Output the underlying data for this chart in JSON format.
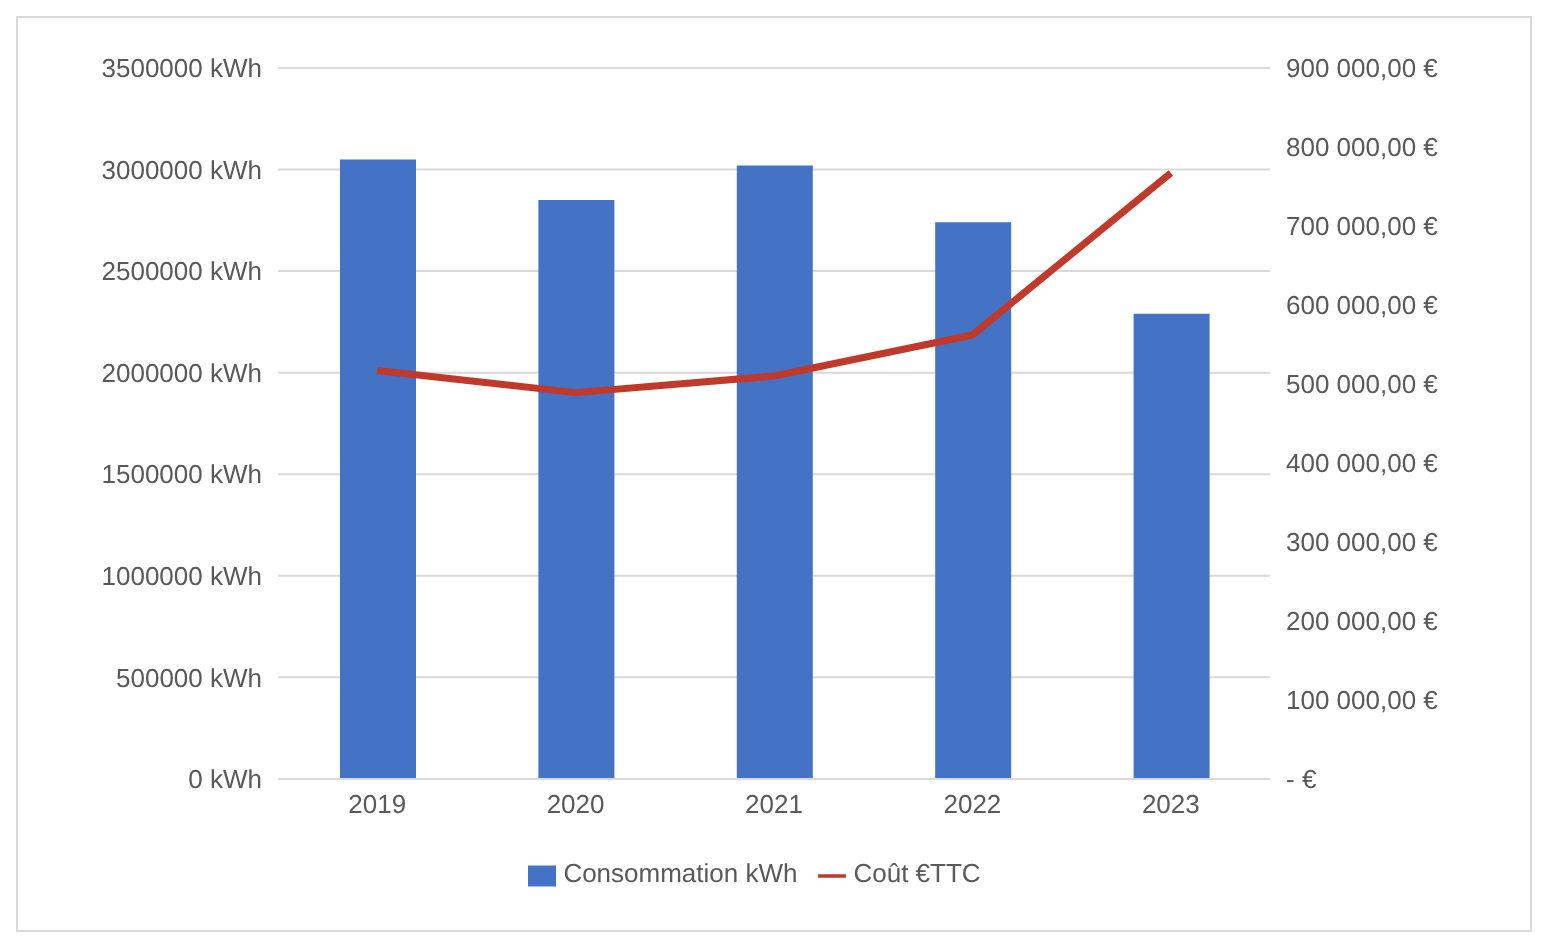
{
  "chart_data": {
    "type": "bar",
    "categories": [
      "2019",
      "2020",
      "2021",
      "2022",
      "2023"
    ],
    "series": [
      {
        "name": "Consommation kWh",
        "color": "#4472c4",
        "values": [
          3050000,
          2850000,
          3020000,
          2740000,
          2290000
        ]
      },
      {
        "name": "Coût €TTC",
        "type": "line",
        "axis": "y2",
        "color": "#c0392b",
        "values": [
          517000,
          489000,
          510000,
          562000,
          767000
        ]
      }
    ],
    "ylim": [
      0,
      3500000
    ],
    "yticks": [
      {
        "value": 0,
        "label": "0 kWh"
      },
      {
        "value": 500000,
        "label": "500000 kWh"
      },
      {
        "value": 1000000,
        "label": "1000000 kWh"
      },
      {
        "value": 1500000,
        "label": "1500000 kWh"
      },
      {
        "value": 2000000,
        "label": "2000000 kWh"
      },
      {
        "value": 2500000,
        "label": "2500000 kWh"
      },
      {
        "value": 3000000,
        "label": "3000000 kWh"
      },
      {
        "value": 3500000,
        "label": "3500000 kWh"
      }
    ],
    "y2lim": [
      0,
      900000
    ],
    "y2ticks": [
      {
        "value": 0,
        "label": "-   €"
      },
      {
        "value": 100000,
        "label": "100 000,00 €"
      },
      {
        "value": 200000,
        "label": "200 000,00 €"
      },
      {
        "value": 300000,
        "label": "300 000,00 €"
      },
      {
        "value": 400000,
        "label": "400 000,00 €"
      },
      {
        "value": 500000,
        "label": "500 000,00 €"
      },
      {
        "value": 600000,
        "label": "600 000,00 €"
      },
      {
        "value": 700000,
        "label": "700 000,00 €"
      },
      {
        "value": 800000,
        "label": "800 000,00 €"
      },
      {
        "value": 900000,
        "label": "900 000,00 €"
      }
    ],
    "grid": "y",
    "legend": "bottom",
    "marker": "none"
  }
}
